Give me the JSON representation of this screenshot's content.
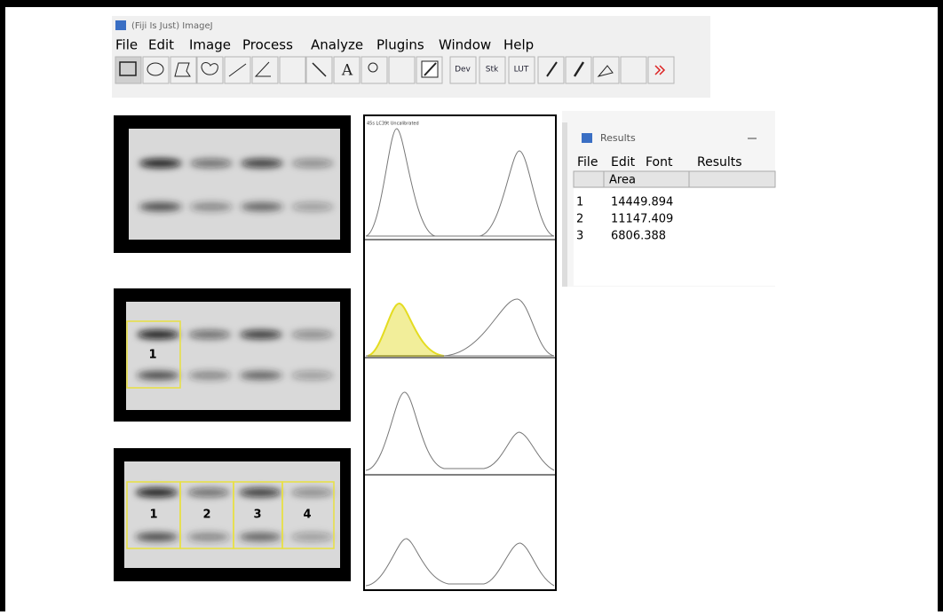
{
  "window": {
    "title": "(Fiji Is Just) ImageJ",
    "menu": [
      "File",
      "Edit",
      "Image",
      "Process",
      "Analyze",
      "Plugins",
      "Window",
      "Help"
    ],
    "toolbar_labels": [
      "A",
      "Dev",
      "Stk",
      "LUT"
    ]
  },
  "blots": {
    "lane_labels_middle": [
      "1"
    ],
    "lane_labels_bottom": [
      "1",
      "2",
      "3",
      "4"
    ]
  },
  "profile_plot": {
    "caption": "45s LC39t Uncalibrated"
  },
  "results": {
    "title": "Results",
    "menu": [
      "File",
      "Edit",
      "Font",
      "Results"
    ],
    "header": "Area",
    "rows": [
      [
        "1",
        "14449.894"
      ],
      [
        "2",
        "11147.409"
      ],
      [
        "3",
        "6806.388"
      ]
    ]
  }
}
